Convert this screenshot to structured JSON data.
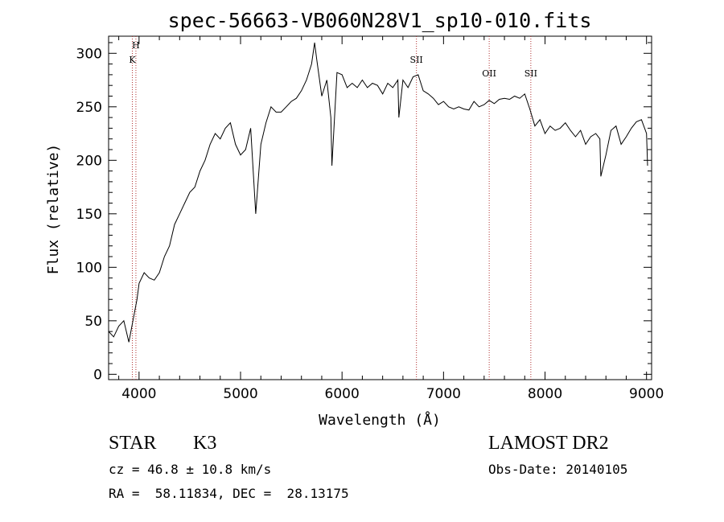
{
  "chart_data": {
    "type": "line",
    "title": "spec-56663-VB060N28V1_sp10-010.fits",
    "xlabel": "Wavelength (Å)",
    "ylabel": "Flux (relative)",
    "xlim": [
      3700,
      9050
    ],
    "ylim": [
      -5,
      316
    ],
    "x_ticks": [
      4000,
      5000,
      6000,
      7000,
      8000,
      9000
    ],
    "y_ticks": [
      0,
      50,
      100,
      150,
      200,
      250,
      300
    ],
    "grid": false,
    "series": [
      {
        "x": [
          3700,
          3750,
          3800,
          3850,
          3900,
          3950,
          3980,
          4000,
          4050,
          4100,
          4150,
          4200,
          4250,
          4300,
          4350,
          4400,
          4450,
          4500,
          4550,
          4600,
          4650,
          4700,
          4750,
          4800,
          4850,
          4900,
          4950,
          5000,
          5050,
          5100,
          5150,
          5200,
          5250,
          5300,
          5350,
          5400,
          5450,
          5500,
          5550,
          5600,
          5650,
          5700,
          5730,
          5750,
          5800,
          5850,
          5890,
          5900,
          5950,
          6000,
          6050,
          6100,
          6150,
          6200,
          6250,
          6300,
          6350,
          6400,
          6450,
          6500,
          6550,
          6560,
          6600,
          6650,
          6700,
          6750,
          6800,
          6850,
          6900,
          6950,
          7000,
          7050,
          7100,
          7150,
          7200,
          7250,
          7300,
          7350,
          7400,
          7450,
          7500,
          7550,
          7600,
          7650,
          7700,
          7750,
          7800,
          7850,
          7900,
          7950,
          8000,
          8050,
          8100,
          8150,
          8200,
          8250,
          8300,
          8350,
          8400,
          8450,
          8500,
          8540,
          8550,
          8600,
          8650,
          8700,
          8750,
          8800,
          8850,
          8900,
          8950,
          9000,
          9010
        ],
        "y": [
          40,
          35,
          45,
          50,
          30,
          55,
          70,
          85,
          95,
          90,
          88,
          95,
          110,
          120,
          140,
          150,
          160,
          170,
          175,
          190,
          200,
          215,
          225,
          220,
          230,
          235,
          215,
          205,
          210,
          230,
          150,
          215,
          235,
          250,
          245,
          245,
          250,
          255,
          258,
          265,
          275,
          290,
          310,
          295,
          260,
          275,
          240,
          195,
          282,
          280,
          268,
          272,
          268,
          275,
          268,
          272,
          270,
          262,
          272,
          268,
          275,
          240,
          275,
          268,
          278,
          280,
          265,
          262,
          258,
          252,
          255,
          250,
          248,
          250,
          248,
          247,
          255,
          250,
          252,
          256,
          253,
          257,
          258,
          257,
          260,
          258,
          262,
          248,
          232,
          238,
          225,
          232,
          228,
          230,
          235,
          228,
          222,
          228,
          215,
          222,
          225,
          220,
          185,
          205,
          228,
          232,
          215,
          222,
          230,
          236,
          238,
          225,
          195
        ]
      }
    ],
    "annotations": [
      {
        "label": "H",
        "x": 3969
      },
      {
        "label": "K",
        "x": 3934
      },
      {
        "label": "SII",
        "x": 6733
      },
      {
        "label": "OII",
        "x": 7450
      },
      {
        "label": "SII",
        "x": 7860
      }
    ]
  },
  "info": {
    "class": "STAR",
    "subclass": "K3",
    "survey": "LAMOST DR2",
    "cz": "cz = 46.8 ± 10.8 km/s",
    "obs_date": "Obs-Date: 20140105",
    "coords": "RA =  58.11834, DEC =  28.13175"
  }
}
